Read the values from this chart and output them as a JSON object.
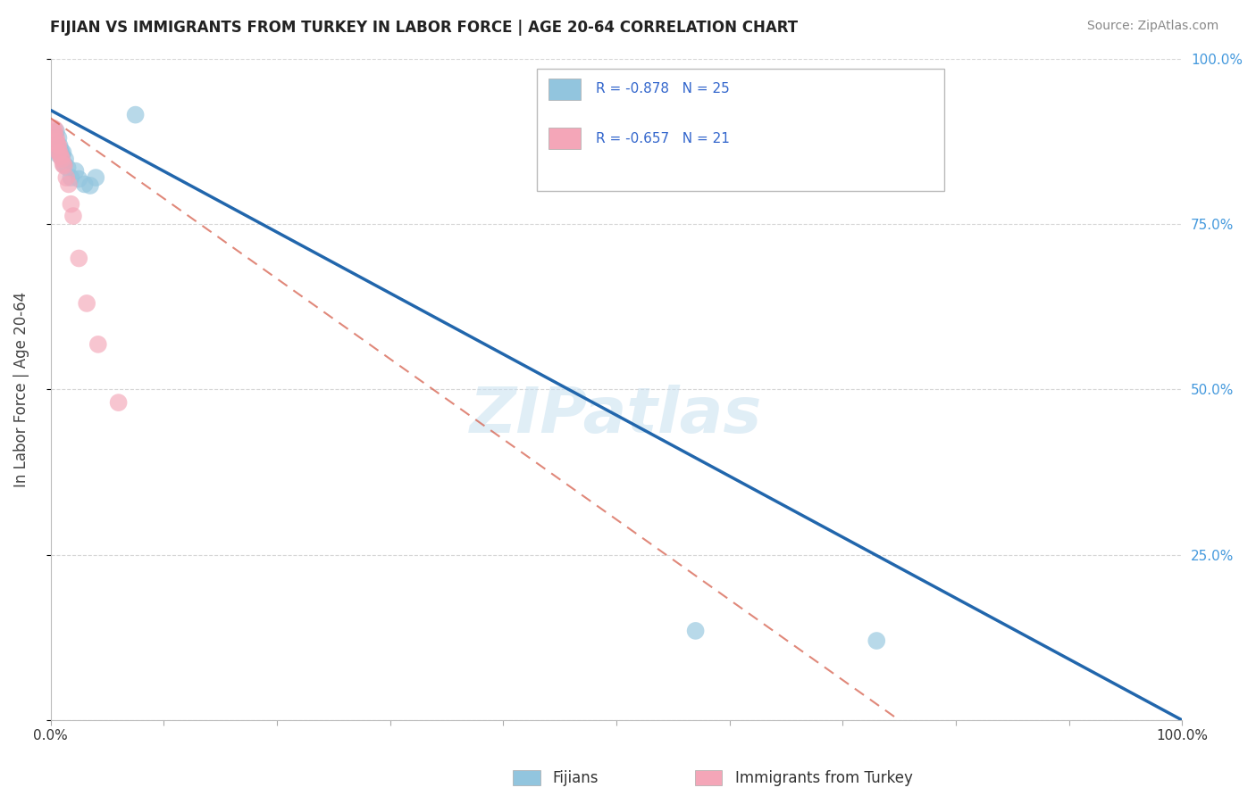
{
  "title": "FIJIAN VS IMMIGRANTS FROM TURKEY IN LABOR FORCE | AGE 20-64 CORRELATION CHART",
  "source": "Source: ZipAtlas.com",
  "ylabel": "In Labor Force | Age 20-64",
  "xlim": [
    0,
    1.0
  ],
  "ylim": [
    0,
    1.0
  ],
  "fijian_R": -0.878,
  "fijian_N": 25,
  "turkey_R": -0.657,
  "turkey_N": 21,
  "fijian_color": "#92c5de",
  "turkey_color": "#f4a6b8",
  "fijian_line_color": "#2166ac",
  "turkey_line_color": "#d6604d",
  "background_color": "#ffffff",
  "grid_color": "#cccccc",
  "fijian_x": [
    0.002,
    0.003,
    0.004,
    0.004,
    0.005,
    0.005,
    0.006,
    0.007,
    0.007,
    0.008,
    0.009,
    0.01,
    0.011,
    0.012,
    0.013,
    0.015,
    0.018,
    0.022,
    0.025,
    0.03,
    0.035,
    0.04,
    0.075,
    0.57,
    0.73
  ],
  "fijian_y": [
    0.875,
    0.88,
    0.87,
    0.885,
    0.89,
    0.865,
    0.86,
    0.88,
    0.855,
    0.868,
    0.862,
    0.855,
    0.858,
    0.84,
    0.848,
    0.835,
    0.82,
    0.83,
    0.818,
    0.81,
    0.808,
    0.82,
    0.915,
    0.135,
    0.12
  ],
  "turkey_x": [
    0.002,
    0.003,
    0.004,
    0.005,
    0.005,
    0.006,
    0.007,
    0.007,
    0.008,
    0.009,
    0.01,
    0.011,
    0.012,
    0.014,
    0.016,
    0.018,
    0.02,
    0.025,
    0.032,
    0.042,
    0.06
  ],
  "turkey_y": [
    0.895,
    0.888,
    0.893,
    0.88,
    0.875,
    0.87,
    0.868,
    0.858,
    0.858,
    0.852,
    0.848,
    0.84,
    0.838,
    0.82,
    0.81,
    0.78,
    0.762,
    0.698,
    0.63,
    0.568,
    0.48
  ],
  "fijian_line_x0": 0.0,
  "fijian_line_y0": 0.922,
  "fijian_line_x1": 1.0,
  "fijian_line_y1": 0.0,
  "turkey_line_x0": 0.0,
  "turkey_line_y0": 0.91,
  "turkey_line_x1": 0.75,
  "turkey_line_y1": 0.0
}
